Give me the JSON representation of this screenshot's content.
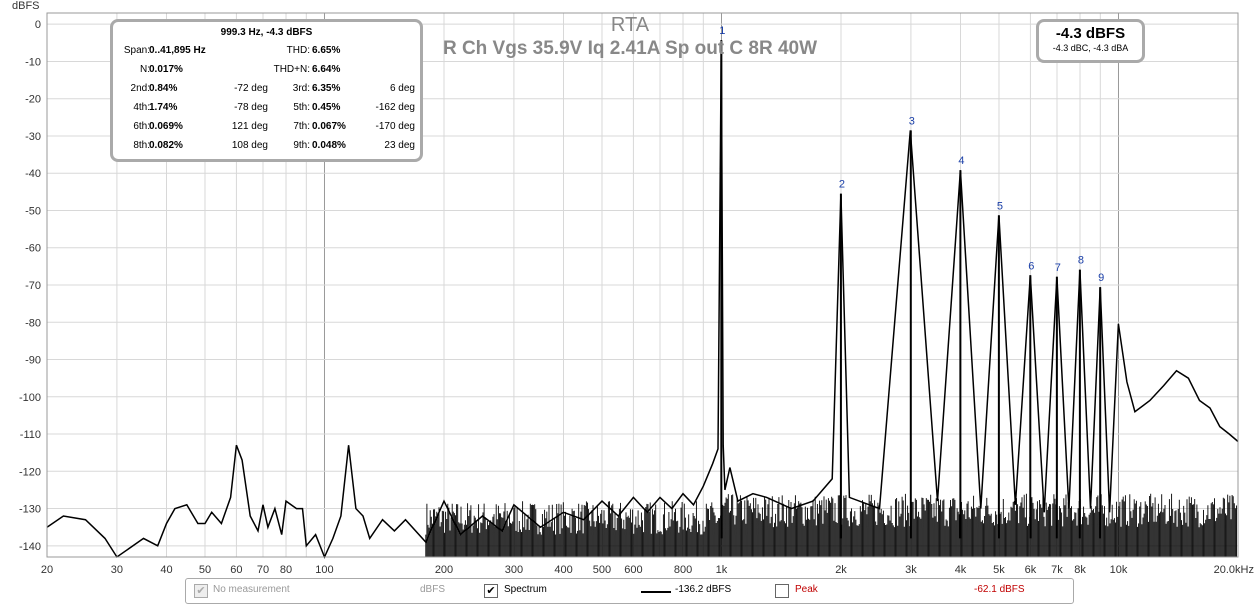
{
  "title": "RTA",
  "subtitle": "R Ch Vgs 35.9V Iq 2.41A Sp out C 8R 40W",
  "y_unit": "dBFS",
  "distortion_panel": {
    "header": "999.3 Hz, -4.3 dBFS",
    "span_label": "Span:",
    "span_value": "0..41,895 Hz",
    "thd_label": "THD:",
    "thd_value": "6.65%",
    "n_label": "N:",
    "n_value": "0.017%",
    "thdn_label": "THD+N:",
    "thdn_value": "6.64%",
    "harmonics": [
      {
        "l1": "2nd:",
        "v1": "0.84%",
        "p1": "-72 deg",
        "l2": "3rd:",
        "v2": "6.35%",
        "p2": "6 deg"
      },
      {
        "l1": "4th:",
        "v1": "1.74%",
        "p1": "-78 deg",
        "l2": "5th:",
        "v2": "0.45%",
        "p2": "-162 deg"
      },
      {
        "l1": "6th:",
        "v1": "0.069%",
        "p1": "121 deg",
        "l2": "7th:",
        "v2": "0.067%",
        "p2": "-170 deg"
      },
      {
        "l1": "8th:",
        "v1": "0.082%",
        "p1": "108 deg",
        "l2": "9th:",
        "v2": "0.048%",
        "p2": "23 deg"
      }
    ]
  },
  "level_box": {
    "main": "-4.3 dBFS",
    "sub": "-4.3 dBC, -4.3 dBA"
  },
  "legend": {
    "no_measurement": "No measurement",
    "unit1": "dBFS",
    "spectrum": "Spectrum",
    "spectrum_value": "-136.2 dBFS",
    "peak": "Peak",
    "peak_value": "-62.1 dBFS",
    "spectrum_color": "#000000",
    "peak_color": "#c00000"
  },
  "chart_data": {
    "type": "line",
    "x_scale": "log",
    "xlim": [
      20,
      20000
    ],
    "ylim": [
      -143,
      3
    ],
    "x_ticks": [
      {
        "v": 20,
        "t": "20"
      },
      {
        "v": 30,
        "t": "30"
      },
      {
        "v": 40,
        "t": "40"
      },
      {
        "v": 50,
        "t": "50"
      },
      {
        "v": 60,
        "t": "60"
      },
      {
        "v": 70,
        "t": "70"
      },
      {
        "v": 80,
        "t": "80"
      },
      {
        "v": 100,
        "t": "100"
      },
      {
        "v": 200,
        "t": "200"
      },
      {
        "v": 300,
        "t": "300"
      },
      {
        "v": 400,
        "t": "400"
      },
      {
        "v": 500,
        "t": "500"
      },
      {
        "v": 600,
        "t": "600"
      },
      {
        "v": 800,
        "t": "800"
      },
      {
        "v": 1000,
        "t": "1k"
      },
      {
        "v": 2000,
        "t": "2k"
      },
      {
        "v": 3000,
        "t": "3k"
      },
      {
        "v": 4000,
        "t": "4k"
      },
      {
        "v": 5000,
        "t": "5k"
      },
      {
        "v": 6000,
        "t": "6k"
      },
      {
        "v": 7000,
        "t": "7k"
      },
      {
        "v": 8000,
        "t": "8k"
      },
      {
        "v": 10000,
        "t": "10k"
      },
      {
        "v": 20000,
        "t": "20.0kHz"
      }
    ],
    "y_ticks": [
      0,
      -10,
      -20,
      -30,
      -40,
      -50,
      -60,
      -70,
      -80,
      -90,
      -100,
      -110,
      -120,
      -130,
      -140
    ],
    "series": [
      {
        "x": [
          20,
          22,
          25,
          28,
          30,
          35,
          38,
          40,
          42,
          45,
          48,
          50,
          52,
          55,
          58,
          60,
          62,
          65,
          68,
          70,
          72,
          75,
          78,
          80,
          85,
          88,
          90,
          95,
          100,
          105,
          110,
          115,
          120,
          125,
          130,
          140,
          150,
          160,
          180,
          200,
          220,
          250,
          280,
          300,
          350,
          400,
          450,
          500,
          550,
          600,
          650,
          700,
          750,
          800,
          850,
          900,
          950,
          980,
          999,
          1010,
          1020,
          1050,
          1100,
          1200,
          1300,
          1500,
          1700,
          1900,
          1999,
          2100,
          2500,
          2990,
          3500,
          3998,
          4500,
          4997,
          5500,
          5996,
          6500,
          6995,
          7500,
          7994,
          8500,
          8993,
          9500,
          9992,
          10500,
          11000,
          12000,
          13000,
          14000,
          15000,
          16000,
          17000,
          18000,
          19000,
          20000
        ],
        "y": [
          -135,
          -132,
          -133,
          -138,
          -143,
          -138,
          -140,
          -134,
          -130,
          -129,
          -134,
          -134,
          -131,
          -134,
          -127,
          -113,
          -117,
          -132,
          -136,
          -129,
          -135,
          -130,
          -137,
          -128,
          -130,
          -130,
          -140,
          -137,
          -143,
          -138,
          -132,
          -113,
          -130,
          -132,
          -138,
          -133,
          -136,
          -133,
          -139,
          -128,
          -137,
          -132,
          -136,
          -129,
          -135,
          -131,
          -133,
          -128,
          -132,
          -127,
          -131,
          -127,
          -130,
          -126,
          -129,
          -124,
          -118,
          -114,
          -4.3,
          -113,
          -125,
          -119,
          -128,
          -126,
          -127,
          -130,
          -128,
          -122,
          -45.5,
          -127,
          -130,
          -28.5,
          -128,
          -39.2,
          -130,
          -51.3,
          -129,
          -67.4,
          -131,
          -67.8,
          -130,
          -65.9,
          -130,
          -70.6,
          -131,
          -80.4,
          -96,
          -104,
          -101,
          -97,
          -93,
          -95,
          -101,
          -103,
          -108,
          -110,
          -112
        ]
      }
    ],
    "harmonic_markers": [
      {
        "label": "1",
        "x": 999,
        "y": -4.3
      },
      {
        "label": "2",
        "x": 1999,
        "y": -45.5
      },
      {
        "label": "3",
        "x": 2998,
        "y": -28.5
      },
      {
        "label": "4",
        "x": 3997,
        "y": -39.2
      },
      {
        "label": "5",
        "x": 4997,
        "y": -51.3
      },
      {
        "label": "6",
        "x": 5996,
        "y": -67.4
      },
      {
        "label": "7",
        "x": 6995,
        "y": -67.8
      },
      {
        "label": "8",
        "x": 7994,
        "y": -65.9
      },
      {
        "label": "9",
        "x": 8993,
        "y": -70.6
      }
    ]
  }
}
